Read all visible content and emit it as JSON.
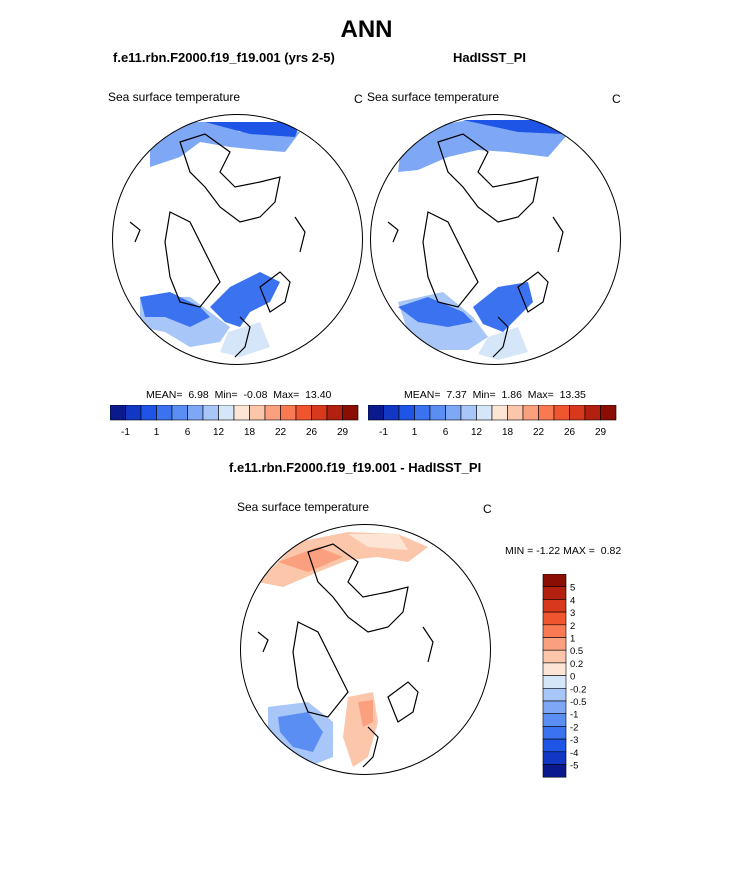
{
  "title": "ANN",
  "panels": [
    {
      "id": "model",
      "case_title": "f.e11.rbn.F2000.f19_f19.001 (yrs 2-5)",
      "variable": "Sea surface temperature",
      "units": "C",
      "stats": {
        "mean_label": "MEAN=",
        "mean": "6.98",
        "min_label": "Min=",
        "min": "-0.08",
        "max_label": "Max=",
        "max": "13.40"
      }
    },
    {
      "id": "obs",
      "case_title": "HadISST_PI",
      "variable": "Sea surface temperature",
      "units": "C",
      "stats": {
        "mean_label": "MEAN=",
        "mean": "7.37",
        "min_label": "Min=",
        "min": "1.86",
        "max_label": "Max=",
        "max": "13.35"
      }
    }
  ],
  "top_colorbar": {
    "labels": [
      "-1",
      "1",
      "6",
      "12",
      "18",
      "22",
      "26",
      "29"
    ],
    "colors": [
      "#0a1a8c",
      "#1237c4",
      "#1f55e6",
      "#3a72f0",
      "#5b8ef2",
      "#7ea8f5",
      "#a8c6f7",
      "#d6e6f9",
      "#fde5d6",
      "#fcc6aa",
      "#fba07e",
      "#f97a52",
      "#ef5630",
      "#d8381c",
      "#b42010",
      "#8a0e04"
    ]
  },
  "difference": {
    "title": "f.e11.rbn.F2000.f19_f19.001 - HadISST_PI",
    "variable": "Sea surface temperature",
    "units": "C",
    "stats": {
      "min_label": "MIN =",
      "min": "-1.22",
      "max_label": "MAX =",
      "max": "0.82"
    },
    "colorbar": {
      "labels": [
        "5",
        "4",
        "3",
        "2",
        "1",
        "0.5",
        "0.2",
        "0",
        "-0.2",
        "-0.5",
        "-1",
        "-2",
        "-3",
        "-4",
        "-5"
      ],
      "colors": [
        "#8a0e04",
        "#b42010",
        "#d8381c",
        "#ef5630",
        "#f97a52",
        "#fba07e",
        "#fcc6aa",
        "#fde5d6",
        "#d6e6f9",
        "#a8c6f7",
        "#7ea8f5",
        "#5b8ef2",
        "#3a72f0",
        "#1f55e6",
        "#1237c4",
        "#0a1a8c"
      ]
    }
  }
}
